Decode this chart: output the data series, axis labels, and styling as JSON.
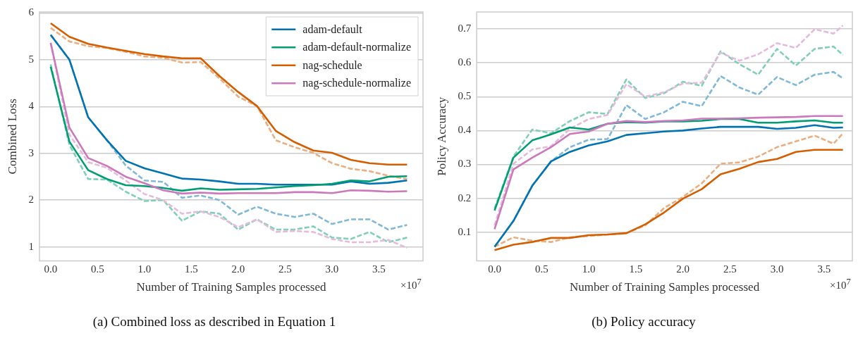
{
  "chart_data": [
    {
      "type": "line",
      "title": "(a) Combined loss as described in Equation 1",
      "xlabel": "Number of Training Samples processed",
      "ylabel": "Combined Loss",
      "annotations": [
        "×10$^{7}$"
      ],
      "x": [
        0,
        0.2,
        0.4,
        0.6,
        0.8,
        1.0,
        1.2,
        1.4,
        1.6,
        1.8,
        2.0,
        2.2,
        2.4,
        2.6,
        2.8,
        3.0,
        3.2,
        3.4,
        3.6,
        3.8
      ],
      "xlim": [
        -0.12,
        3.97
      ],
      "xticks": [
        {
          "value": 0,
          "label": "0.0"
        },
        {
          "value": 0.5,
          "label": "0.5"
        },
        {
          "value": 1,
          "label": "1.0"
        },
        {
          "value": 1.5,
          "label": "1.5"
        },
        {
          "value": 2,
          "label": "2.0"
        },
        {
          "value": 2.5,
          "label": "2.5"
        },
        {
          "value": 3,
          "label": "3.0"
        },
        {
          "value": 3.5,
          "label": "3.5"
        }
      ],
      "ylim": [
        0.7,
        6.02
      ],
      "yticks": [
        1,
        2,
        3,
        4,
        5,
        6
      ],
      "grid": "y",
      "legend": "top right",
      "series": [
        {
          "color": "#80b9d8",
          "line_style": "dashed",
          "values": [
            5.53,
            5.0,
            3.77,
            3.28,
            2.74,
            2.42,
            2.39,
            2.05,
            2.1,
            2.0,
            1.69,
            1.86,
            1.71,
            1.64,
            1.71,
            1.49,
            1.59,
            1.59,
            1.37,
            1.47
          ]
        },
        {
          "color": "#80cfb9",
          "line_style": "dashed",
          "values": [
            4.9,
            3.18,
            2.45,
            2.44,
            2.18,
            1.98,
            2.0,
            1.56,
            1.76,
            1.71,
            1.37,
            1.59,
            1.37,
            1.37,
            1.44,
            1.2,
            1.17,
            1.32,
            1.1,
            1.2
          ]
        },
        {
          "color": "#eaae80",
          "line_style": "dashed",
          "values": [
            5.68,
            5.39,
            5.29,
            5.25,
            5.17,
            5.07,
            5.04,
            4.94,
            4.95,
            4.6,
            4.21,
            4.01,
            3.28,
            3.13,
            3.01,
            2.79,
            2.67,
            2.62,
            2.52,
            2.45
          ]
        },
        {
          "color": "#e5bbdd",
          "line_style": "dashed",
          "values": [
            5.36,
            3.4,
            2.81,
            2.69,
            2.42,
            2.13,
            2.0,
            1.71,
            1.76,
            1.64,
            1.42,
            1.59,
            1.32,
            1.34,
            1.32,
            1.17,
            1.1,
            1.1,
            1.15,
            0.98
          ]
        },
        {
          "name": "adam-default",
          "color": "#0173b2",
          "values": [
            5.53,
            5.0,
            3.77,
            3.28,
            2.84,
            2.68,
            2.57,
            2.46,
            2.44,
            2.4,
            2.35,
            2.35,
            2.33,
            2.33,
            2.33,
            2.33,
            2.4,
            2.35,
            2.37,
            2.42
          ]
        },
        {
          "name": "adam-default-normalize",
          "color": "#029e73",
          "values": [
            4.85,
            3.25,
            2.64,
            2.45,
            2.32,
            2.3,
            2.26,
            2.2,
            2.25,
            2.22,
            2.23,
            2.24,
            2.27,
            2.3,
            2.32,
            2.35,
            2.42,
            2.4,
            2.5,
            2.51
          ]
        },
        {
          "name": "nag-schedule",
          "color": "#d55e00",
          "values": [
            5.78,
            5.49,
            5.34,
            5.26,
            5.19,
            5.12,
            5.07,
            5.03,
            5.03,
            4.65,
            4.31,
            4.01,
            3.48,
            3.24,
            3.06,
            3.01,
            2.86,
            2.79,
            2.76,
            2.76
          ]
        },
        {
          "name": "nag-schedule-normalize",
          "color": "#cc78bc",
          "values": [
            5.36,
            3.55,
            2.9,
            2.73,
            2.5,
            2.36,
            2.21,
            2.14,
            2.16,
            2.14,
            2.15,
            2.15,
            2.15,
            2.17,
            2.17,
            2.15,
            2.21,
            2.2,
            2.18,
            2.19
          ]
        }
      ]
    },
    {
      "type": "line",
      "title": "(b) Policy accuracy",
      "xlabel": "Number of Training Samples processed",
      "ylabel": "Policy Accuracy",
      "annotations": [
        "×10$^{7}$"
      ],
      "x": [
        0,
        0.2,
        0.4,
        0.6,
        0.8,
        1.0,
        1.2,
        1.4,
        1.6,
        1.8,
        2.0,
        2.2,
        2.4,
        2.6,
        2.8,
        3.0,
        3.2,
        3.4,
        3.6,
        3.7
      ],
      "xlim": [
        -0.19,
        3.8
      ],
      "xticks": [
        {
          "value": 0,
          "label": "0.0"
        },
        {
          "value": 0.5,
          "label": "0.5"
        },
        {
          "value": 1,
          "label": "1.0"
        },
        {
          "value": 1.5,
          "label": "1.5"
        },
        {
          "value": 2,
          "label": "2.0"
        },
        {
          "value": 2.5,
          "label": "2.5"
        },
        {
          "value": 3,
          "label": "3.0"
        },
        {
          "value": 3.5,
          "label": "3.5"
        }
      ],
      "ylim": [
        0.015,
        0.75
      ],
      "yticks": [
        0.1,
        0.2,
        0.3,
        0.4,
        0.5,
        0.6,
        0.7
      ],
      "grid": "y",
      "series": [
        {
          "color": "#80b9d8",
          "line_style": "dashed",
          "values": [
            0.057,
            0.133,
            0.237,
            0.309,
            0.351,
            0.373,
            0.375,
            0.475,
            0.434,
            0.454,
            0.485,
            0.472,
            0.561,
            0.527,
            0.506,
            0.558,
            0.534,
            0.565,
            0.573,
            0.554
          ]
        },
        {
          "color": "#80cfb9",
          "line_style": "dashed",
          "values": [
            0.17,
            0.323,
            0.403,
            0.392,
            0.428,
            0.454,
            0.449,
            0.551,
            0.496,
            0.51,
            0.544,
            0.532,
            0.634,
            0.596,
            0.565,
            0.641,
            0.592,
            0.641,
            0.648,
            0.623
          ]
        },
        {
          "color": "#eaae80",
          "line_style": "dashed",
          "values": [
            0.057,
            0.085,
            0.075,
            0.071,
            0.085,
            0.089,
            0.093,
            0.097,
            0.12,
            0.171,
            0.204,
            0.244,
            0.302,
            0.306,
            0.323,
            0.351,
            0.368,
            0.385,
            0.361,
            0.392
          ]
        },
        {
          "color": "#e5bbdd",
          "line_style": "dashed",
          "values": [
            0.12,
            0.302,
            0.344,
            0.354,
            0.405,
            0.434,
            0.446,
            0.537,
            0.5,
            0.513,
            0.539,
            0.541,
            0.63,
            0.606,
            0.625,
            0.658,
            0.644,
            0.699,
            0.686,
            0.71
          ]
        },
        {
          "color": "#0173b2",
          "values": [
            0.057,
            0.133,
            0.237,
            0.309,
            0.337,
            0.356,
            0.368,
            0.387,
            0.392,
            0.397,
            0.4,
            0.406,
            0.411,
            0.411,
            0.411,
            0.405,
            0.408,
            0.416,
            0.408,
            0.409
          ]
        },
        {
          "color": "#029e73",
          "values": [
            0.164,
            0.32,
            0.371,
            0.389,
            0.409,
            0.403,
            0.42,
            0.425,
            0.423,
            0.427,
            0.427,
            0.429,
            0.434,
            0.434,
            0.423,
            0.423,
            0.427,
            0.43,
            0.423,
            0.423
          ]
        },
        {
          "color": "#d55e00",
          "values": [
            0.047,
            0.063,
            0.071,
            0.083,
            0.083,
            0.091,
            0.093,
            0.097,
            0.123,
            0.158,
            0.199,
            0.227,
            0.271,
            0.287,
            0.307,
            0.316,
            0.337,
            0.343,
            0.343,
            0.343
          ]
        },
        {
          "color": "#cc78bc",
          "values": [
            0.109,
            0.285,
            0.32,
            0.351,
            0.39,
            0.397,
            0.42,
            0.428,
            0.425,
            0.428,
            0.43,
            0.435,
            0.435,
            0.436,
            0.438,
            0.439,
            0.44,
            0.443,
            0.443,
            0.443
          ]
        }
      ]
    }
  ]
}
